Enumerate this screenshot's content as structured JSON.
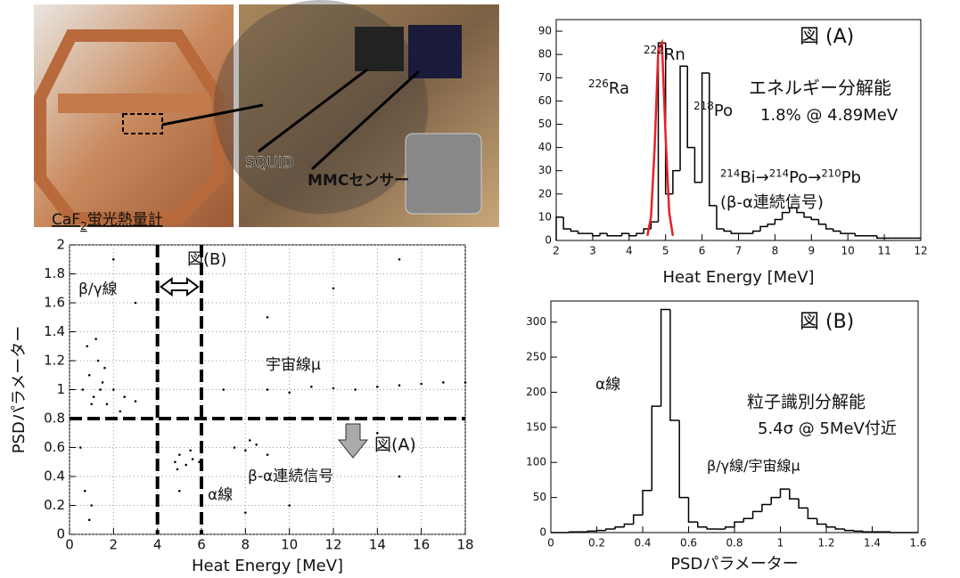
{
  "photos": {
    "labels": [
      "SQUID",
      "MMCセンサー"
    ],
    "caption": {
      "text": "CaF",
      "sub": "2",
      "rest": "蛍光熱量計"
    }
  },
  "chart_data": [
    {
      "type": "histogram",
      "title": "図 (A)",
      "x_label": "Heat Energy [MeV]",
      "bins": [
        2,
        2.2,
        2.4,
        2.6,
        2.8,
        3,
        3.2,
        3.4,
        3.6,
        3.8,
        4,
        4.2,
        4.4,
        4.6,
        4.8,
        5,
        5.2,
        5.4,
        5.6,
        5.8,
        6,
        6.2,
        6.4,
        6.6,
        6.8,
        7,
        7.2,
        7.4,
        7.6,
        7.8,
        8,
        8.2,
        8.4,
        8.6,
        8.8,
        9,
        9.2,
        9.4,
        9.6,
        9.8,
        10,
        10.2,
        10.4,
        10.6,
        10.8,
        11,
        11.2,
        11.4,
        11.6,
        11.8,
        12
      ],
      "counts": [
        10,
        5,
        4,
        3,
        3,
        2,
        3,
        2,
        2,
        3,
        2,
        3,
        5,
        8,
        85,
        20,
        30,
        75,
        40,
        25,
        72,
        15,
        5,
        4,
        3,
        3,
        3,
        4,
        6,
        7,
        9,
        12,
        14,
        12,
        10,
        9,
        7,
        5,
        4,
        3,
        3,
        2,
        2,
        2,
        1,
        1,
        1,
        1,
        1,
        1
      ],
      "color": "#000000",
      "fit": {
        "color": "#e8202a",
        "x": [
          4.5,
          4.6,
          4.7,
          4.8,
          4.9,
          5.0,
          5.1,
          5.2
        ],
        "values": [
          2,
          10,
          40,
          82,
          85,
          45,
          12,
          2
        ]
      },
      "xlim": [
        2,
        12
      ],
      "xticks": [
        2,
        3,
        4,
        5,
        6,
        7,
        8,
        9,
        10,
        11,
        12
      ],
      "ylim": [
        0,
        95
      ],
      "yticks": [
        0,
        10,
        20,
        30,
        40,
        50,
        60,
        70,
        80,
        90
      ],
      "isotopes": [
        {
          "sup": "226",
          "text": "Ra"
        },
        {
          "sup": "222",
          "text": "Rn"
        },
        {
          "sup": "218",
          "text": "Po"
        }
      ],
      "chain": [
        {
          "sup": "214",
          "text": "Bi→"
        },
        {
          "sup": "214",
          "text": "Po→"
        },
        {
          "sup": "210",
          "text": "Pb"
        }
      ],
      "annotations": [
        "エネルギー分解能",
        "1.8% @ 4.89MeV",
        "(β-α連続信号)"
      ]
    },
    {
      "type": "scatter",
      "x_label": "Heat Energy [MeV]",
      "y_label": "PSDパラメーター",
      "x": [
        0.6,
        0.9,
        1.1,
        1.3,
        1.5,
        1.7,
        2.0,
        2.3,
        0.8,
        1.2,
        1.6,
        1.0,
        1.4,
        2.5,
        0.5,
        3.0,
        4.8,
        5.0,
        5.3,
        5.6,
        5.9,
        4.9,
        5.5,
        7.5,
        8.0,
        8.5,
        9.0,
        8.2,
        7,
        9,
        11,
        13,
        15,
        17,
        10,
        12,
        14,
        16,
        18,
        3,
        6,
        9,
        12,
        15,
        0.7,
        1.0,
        0.9,
        5,
        10,
        15,
        2,
        8,
        14
      ],
      "y": [
        1.0,
        1.1,
        0.95,
        1.2,
        1.05,
        0.9,
        1.0,
        0.85,
        1.3,
        1.35,
        1.15,
        0.9,
        1.0,
        0.95,
        0.6,
        0.92,
        0.5,
        0.55,
        0.48,
        0.52,
        0.5,
        0.45,
        0.58,
        0.6,
        0.58,
        0.62,
        0.55,
        0.65,
        1.0,
        1.0,
        1.02,
        1.0,
        1.03,
        1.05,
        0.98,
        1.01,
        1.02,
        1.04,
        1.05,
        1.6,
        1.8,
        1.5,
        1.7,
        1.9,
        0.3,
        0.2,
        0.1,
        0.3,
        0.2,
        0.4,
        1.9,
        0.15,
        0.7
      ],
      "color": "#000000",
      "xlim": [
        0,
        18
      ],
      "xticks": [
        0,
        2,
        4,
        6,
        8,
        10,
        12,
        14,
        16,
        18
      ],
      "ylim": [
        0,
        2
      ],
      "yticks": [
        0,
        0.2,
        0.4,
        0.6,
        0.8,
        1,
        1.2,
        1.4,
        1.6,
        1.8,
        2
      ],
      "grid": true,
      "cut_x": [
        4,
        6
      ],
      "cut_y": [
        0.8
      ],
      "annotations": [
        "β/γ線",
        "宇宙線μ",
        "β-α連続信号",
        "α線",
        "図(B)",
        "図(A)"
      ]
    },
    {
      "type": "histogram",
      "title": "図 (B)",
      "x_label": "PSDパラメーター",
      "bins": [
        0,
        0.04,
        0.08,
        0.12,
        0.16,
        0.2,
        0.24,
        0.28,
        0.32,
        0.36,
        0.4,
        0.44,
        0.48,
        0.52,
        0.56,
        0.6,
        0.64,
        0.68,
        0.72,
        0.76,
        0.8,
        0.84,
        0.88,
        0.92,
        0.96,
        1,
        1.04,
        1.08,
        1.12,
        1.16,
        1.2,
        1.24,
        1.28,
        1.32,
        1.36,
        1.4,
        1.44,
        1.48,
        1.52,
        1.56,
        1.6
      ],
      "counts": [
        0,
        0,
        1,
        1,
        2,
        3,
        5,
        8,
        12,
        25,
        60,
        180,
        318,
        160,
        50,
        15,
        8,
        5,
        5,
        8,
        15,
        20,
        30,
        40,
        50,
        62,
        48,
        35,
        20,
        12,
        8,
        5,
        3,
        2,
        1,
        1,
        1,
        0,
        0,
        0
      ],
      "color": "#000000",
      "xlim": [
        0,
        1.6
      ],
      "xticks": [
        0,
        0.2,
        0.4,
        0.6,
        0.8,
        1,
        1.2,
        1.4,
        1.6
      ],
      "ylim": [
        0,
        330
      ],
      "yticks": [
        0,
        50,
        100,
        150,
        200,
        250,
        300
      ],
      "annotations": [
        "α線",
        "粒子識別分解能",
        "5.4σ @ 5MeV付近",
        "β/γ線/宇宙線μ"
      ]
    }
  ]
}
